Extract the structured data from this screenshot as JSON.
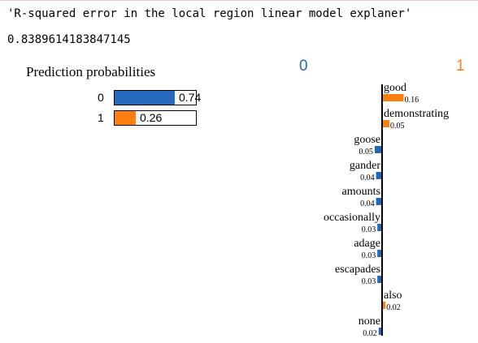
{
  "output": {
    "label": "'R-squared error in the local region linear model explaner'",
    "value": "0.8389614183847145"
  },
  "prediction": {
    "title": "Prediction probabilities",
    "classes": [
      {
        "label": "0",
        "prob": 0.74,
        "value_text": "0.74",
        "color": "#2369bd"
      },
      {
        "label": "1",
        "prob": 0.26,
        "value_text": "0.26",
        "color": "#ff7f0e"
      }
    ]
  },
  "explanation": {
    "left_class": "0",
    "right_class": "1",
    "left_color": "#2369bd",
    "right_color": "#ff7f0e"
  },
  "chart_data": {
    "type": "bar",
    "orientation": "horizontal",
    "features": [
      {
        "name": "good",
        "weight": 0.16,
        "label": "0.16",
        "side": "right"
      },
      {
        "name": "demonstrating",
        "weight": 0.05,
        "label": "0.05",
        "side": "right"
      },
      {
        "name": "goose",
        "weight": -0.05,
        "label": "0.05",
        "side": "left"
      },
      {
        "name": "gander",
        "weight": -0.04,
        "label": "0.04",
        "side": "left"
      },
      {
        "name": "amounts",
        "weight": -0.04,
        "label": "0.04",
        "side": "left"
      },
      {
        "name": "occasionally",
        "weight": -0.03,
        "label": "0.03",
        "side": "left"
      },
      {
        "name": "adage",
        "weight": -0.03,
        "label": "0.03",
        "side": "left"
      },
      {
        "name": "escapades",
        "weight": -0.03,
        "label": "0.03",
        "side": "left"
      },
      {
        "name": "also",
        "weight": 0.02,
        "label": "0.02",
        "side": "right"
      },
      {
        "name": "none",
        "weight": -0.02,
        "label": "0.02",
        "side": "left"
      }
    ]
  }
}
